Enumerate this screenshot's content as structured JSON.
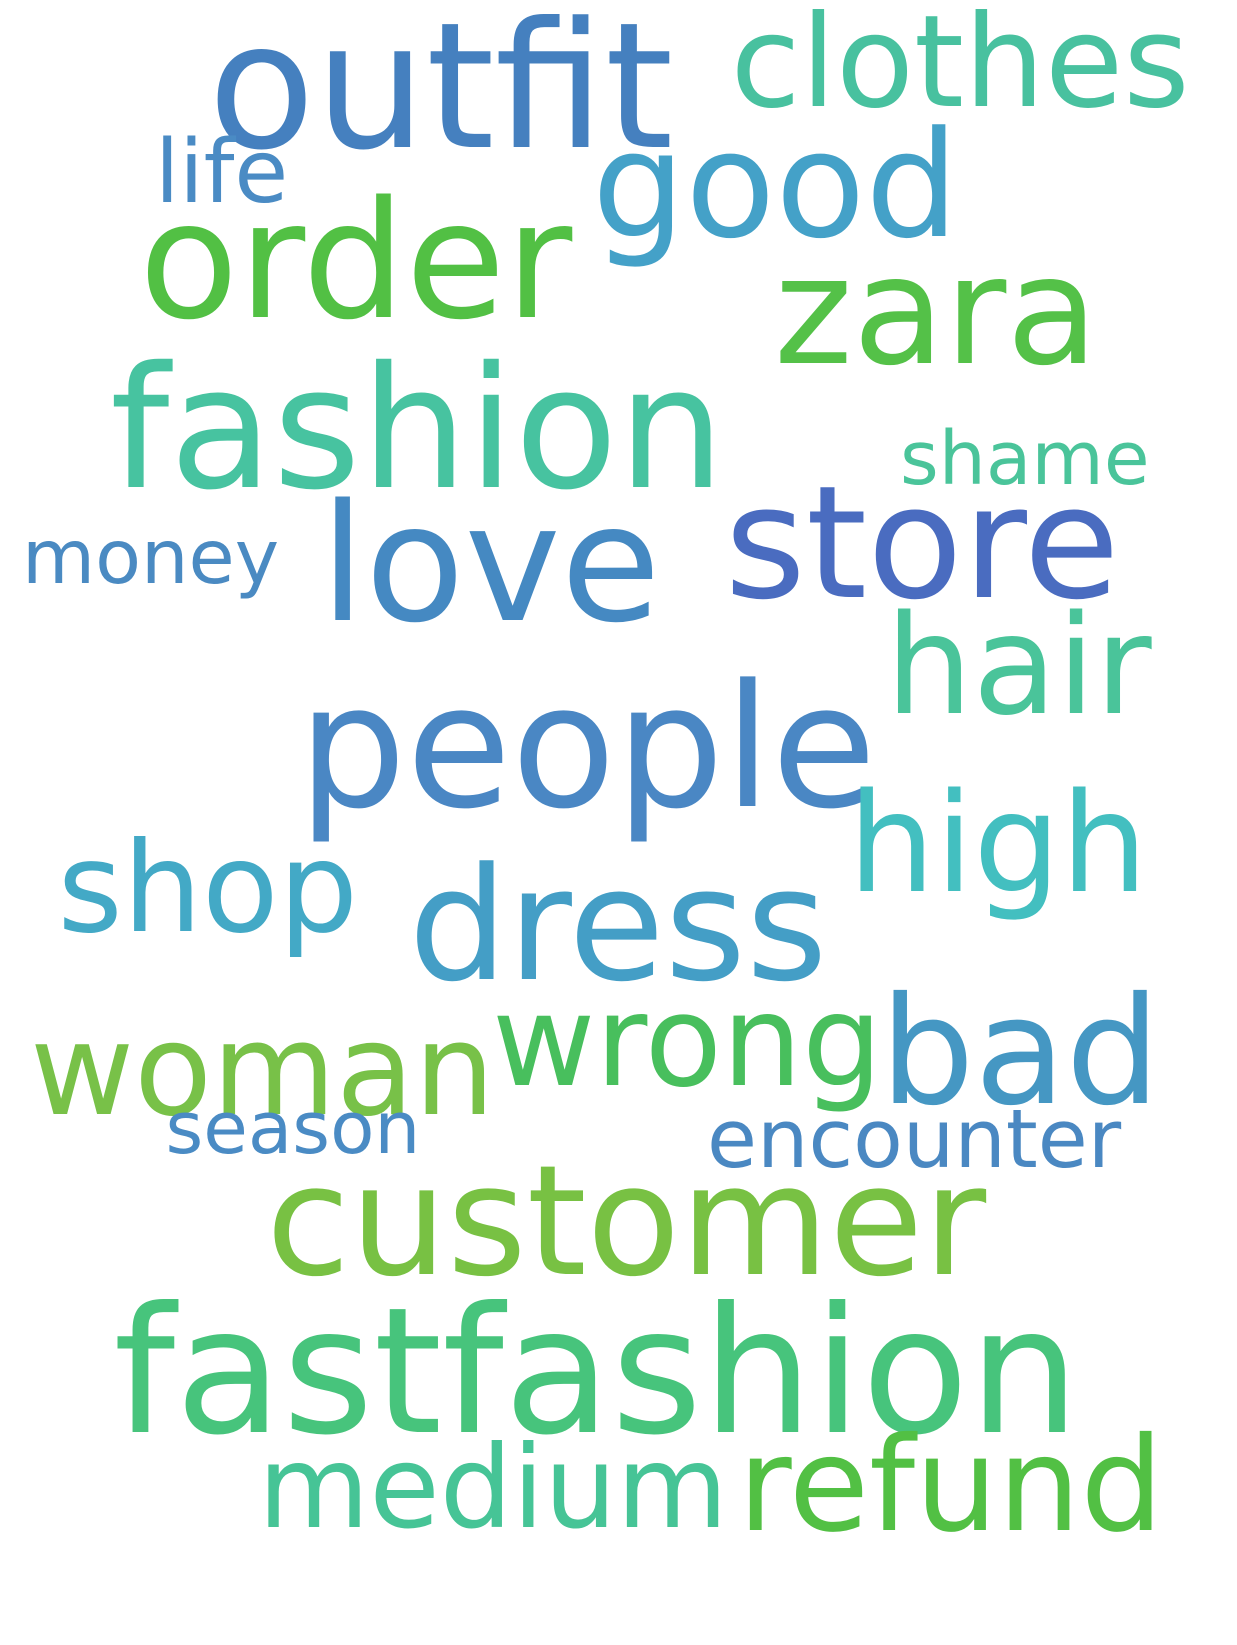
{
  "background_color": "#ffffff",
  "words": [
    {
      "key": "outfit",
      "text": "outfit",
      "color": "#4580bf"
    },
    {
      "key": "clothes",
      "text": "clothes",
      "color": "#48c19f"
    },
    {
      "key": "life",
      "text": "life",
      "color": "#4a8bc4"
    },
    {
      "key": "good",
      "text": "good",
      "color": "#44a1c8"
    },
    {
      "key": "order",
      "text": "order",
      "color": "#52c044"
    },
    {
      "key": "zara",
      "text": "zara",
      "color": "#54c148"
    },
    {
      "key": "fashion",
      "text": "fashion",
      "color": "#47c3a0"
    },
    {
      "key": "shame",
      "text": "shame",
      "color": "#4ac49a"
    },
    {
      "key": "store",
      "text": "store",
      "color": "#4a6cc0"
    },
    {
      "key": "love",
      "text": "love",
      "color": "#4589c2"
    },
    {
      "key": "money",
      "text": "money",
      "color": "#4a8ac2"
    },
    {
      "key": "hair",
      "text": "hair",
      "color": "#4ac49a"
    },
    {
      "key": "people",
      "text": "people",
      "color": "#4a87c4"
    },
    {
      "key": "high",
      "text": "high",
      "color": "#43bfc0"
    },
    {
      "key": "shop",
      "text": "shop",
      "color": "#43a9c6"
    },
    {
      "key": "dress",
      "text": "dress",
      "color": "#449ec6"
    },
    {
      "key": "woman",
      "text": "woman",
      "color": "#78c148"
    },
    {
      "key": "wrong",
      "text": "wrong",
      "color": "#48bf5d"
    },
    {
      "key": "bad",
      "text": "bad",
      "color": "#4597c3"
    },
    {
      "key": "season",
      "text": "season",
      "color": "#4a8bc4"
    },
    {
      "key": "encounter",
      "text": "encounter",
      "color": "#4a88c2"
    },
    {
      "key": "customer",
      "text": "customer",
      "color": "#78c143"
    },
    {
      "key": "fastfashion",
      "text": "fastfashion",
      "color": "#47c47c"
    },
    {
      "key": "medium",
      "text": "medium",
      "color": "#46c496"
    },
    {
      "key": "refund",
      "text": "refund",
      "color": "#52c044"
    }
  ]
}
